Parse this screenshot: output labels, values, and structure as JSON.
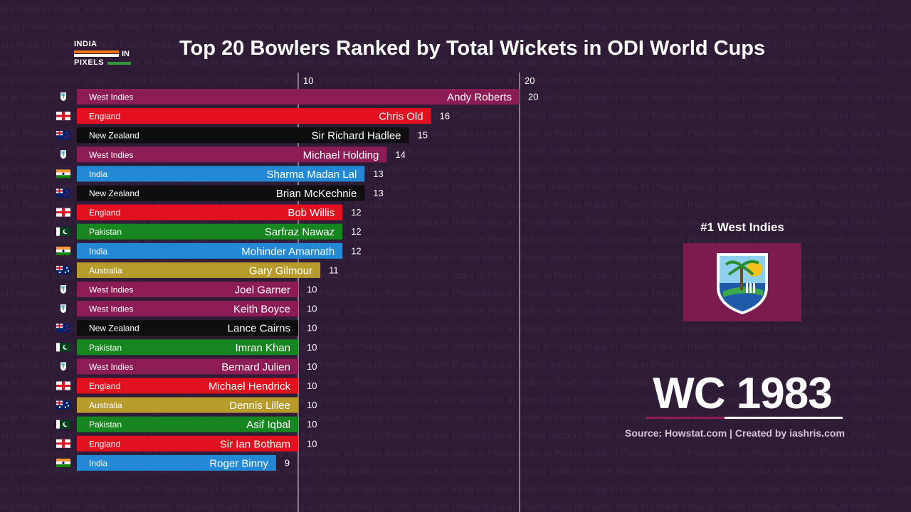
{
  "title": "Top 20 Bowlers Ranked by Total Wickets in ODI World Cups",
  "logo": {
    "line1": "INDIA",
    "line2": "IN",
    "line3": "PIXELS"
  },
  "watermark_text": "India in Pixels",
  "leader_label": "#1 West Indies",
  "year_label": "WC 1983",
  "source": "Source: Howstat.com | Created by iashris.com",
  "colors": {
    "background": "#2e1b36",
    "West Indies": "#8c1c55",
    "England": "#e3101f",
    "New Zealand": "#0e0e0e",
    "India": "#2389d6",
    "Pakistan": "#178520",
    "Australia": "#b79c2d"
  },
  "chart_data": {
    "type": "bar",
    "orientation": "horizontal",
    "title": "Top 20 Bowlers Ranked by Total Wickets in ODI World Cups",
    "xlim": [
      0,
      20.5
    ],
    "xticks": [
      10,
      20
    ],
    "grid": true,
    "rows": [
      {
        "player": "Andy Roberts",
        "team": "West Indies",
        "value": 20,
        "flag": "west-indies-flag"
      },
      {
        "player": "Chris Old",
        "team": "England",
        "value": 16,
        "flag": "england-flag"
      },
      {
        "player": "Sir Richard Hadlee",
        "team": "New Zealand",
        "value": 15,
        "flag": "new-zealand-flag"
      },
      {
        "player": "Michael Holding",
        "team": "West Indies",
        "value": 14,
        "flag": "west-indies-flag"
      },
      {
        "player": "Sharma Madan Lal",
        "team": "India",
        "value": 13,
        "flag": "india-flag"
      },
      {
        "player": "Brian McKechnie",
        "team": "New Zealand",
        "value": 13,
        "flag": "new-zealand-flag"
      },
      {
        "player": "Bob Willis",
        "team": "England",
        "value": 12,
        "flag": "england-flag"
      },
      {
        "player": "Sarfraz Nawaz",
        "team": "Pakistan",
        "value": 12,
        "flag": "pakistan-flag"
      },
      {
        "player": "Mohinder Amarnath",
        "team": "India",
        "value": 12,
        "flag": "india-flag"
      },
      {
        "player": "Gary Gilmour",
        "team": "Australia",
        "value": 11,
        "flag": "australia-flag"
      },
      {
        "player": "Joel Garner",
        "team": "West Indies",
        "value": 10,
        "flag": "west-indies-flag"
      },
      {
        "player": "Keith Boyce",
        "team": "West Indies",
        "value": 10,
        "flag": "west-indies-flag"
      },
      {
        "player": "Lance Cairns",
        "team": "New Zealand",
        "value": 10,
        "flag": "new-zealand-flag"
      },
      {
        "player": "Imran Khan",
        "team": "Pakistan",
        "value": 10,
        "flag": "pakistan-flag"
      },
      {
        "player": "Bernard Julien",
        "team": "West Indies",
        "value": 10,
        "flag": "west-indies-flag"
      },
      {
        "player": "Michael Hendrick",
        "team": "England",
        "value": 10,
        "flag": "england-flag"
      },
      {
        "player": "Dennis Lillee",
        "team": "Australia",
        "value": 10,
        "flag": "australia-flag"
      },
      {
        "player": "Asif Iqbal",
        "team": "Pakistan",
        "value": 10,
        "flag": "pakistan-flag"
      },
      {
        "player": "Sir Ian Botham",
        "team": "England",
        "value": 10,
        "flag": "england-flag"
      },
      {
        "player": "Roger Binny",
        "team": "India",
        "value": 9,
        "flag": "india-flag"
      }
    ]
  }
}
